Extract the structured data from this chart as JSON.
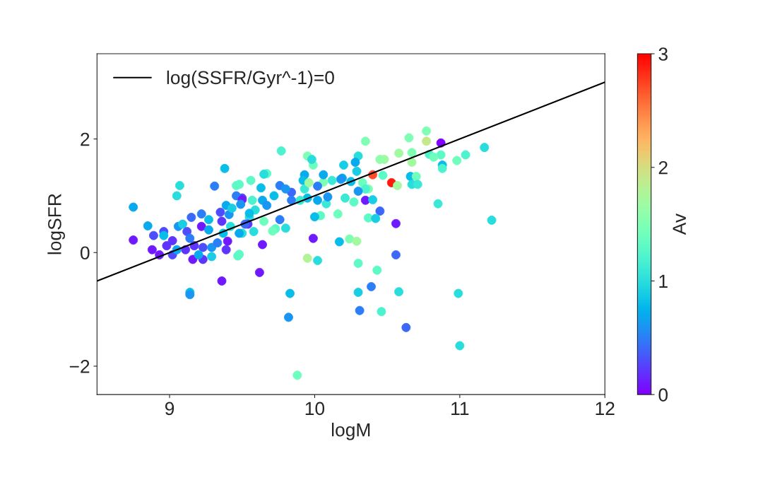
{
  "chart_data": {
    "type": "scatter",
    "xlabel": "logM",
    "ylabel": "logSFR",
    "clabel": "Av",
    "xlim": [
      8.5,
      12
    ],
    "xticks": [
      9,
      10,
      11,
      12
    ],
    "ylim": [
      -2.5,
      3.5
    ],
    "yticks": [
      {
        "value": -2,
        "label": "−2"
      },
      0,
      2
    ],
    "clim": [
      0,
      3
    ],
    "cticks": [
      0,
      1,
      2,
      3
    ],
    "grid": false,
    "legend": "top left",
    "series": [
      {
        "marker": "circle",
        "x": [
          8.75,
          8.75,
          8.85,
          9.07,
          9.05,
          9.38,
          9.31,
          9.46,
          9.36,
          9.14,
          9.14,
          9.62,
          9.47,
          9.95,
          10.02,
          9.83,
          9.82,
          9.88,
          10.3,
          10.43,
          10.56,
          10.39,
          10.3,
          10.58,
          10.99,
          10.31,
          10.46,
          10.63,
          11.0,
          11.22,
          10.77,
          10.77,
          10.65,
          10.87,
          11.17,
          10.58,
          10.67,
          10.48,
          10.67,
          10.79,
          10.87,
          10.82,
          10.98,
          11.04,
          10.88,
          10.88,
          10.47,
          10.53,
          10.57,
          10.66,
          10.7,
          10.67,
          10.71,
          10.85,
          10.56,
          10.45,
          10.35,
          10.45,
          9.77,
          9.95,
          9.99,
          9.98,
          10.3,
          10.28,
          10.2,
          10.29,
          10.4,
          10.19,
          10.25,
          10.33,
          10.37,
          10.35,
          10.3,
          10.35,
          10.4,
          10.37,
          10.42,
          10.21,
          10.27,
          10.16,
          10.04,
          10.0,
          10.08,
          10.06,
          10.18,
          10.12,
          10.06,
          9.93,
          9.92,
          9.93,
          10.02,
          9.96,
          10.09,
          10.02,
          9.95,
          9.9,
          9.84,
          9.76,
          9.8,
          9.63,
          9.56,
          9.67,
          9.65,
          9.48,
          9.72,
          9.84,
          9.64,
          9.57,
          9.5,
          9.59,
          9.67,
          9.76,
          9.8,
          9.73,
          9.71,
          9.64,
          9.65,
          9.55,
          9.58,
          9.54,
          9.5,
          9.99,
          10.17,
          10.24,
          10.29,
          9.48,
          8.88,
          8.89,
          8.96,
          8.96,
          8.98,
          9.02,
          8.93,
          9.02,
          9.06,
          9.09,
          9.12,
          9.15,
          9.22,
          9.14,
          9.11,
          9.17,
          9.16,
          9.23,
          9.22,
          9.27,
          9.27,
          9.23,
          9.29,
          9.29,
          9.33,
          9.35,
          9.36,
          9.37,
          9.39,
          9.4,
          9.42,
          9.41,
          9.39,
          9.43,
          9.46,
          9.5,
          9.49,
          9.48,
          9.52,
          9.55,
          9.05,
          9.2
        ],
        "values": [
          0.8,
          0.22,
          0.47,
          1.18,
          1.0,
          1.48,
          1.17,
          1.18,
          -0.5,
          -0.7,
          -0.74,
          -0.35,
          -0.06,
          -0.1,
          -0.14,
          -0.72,
          -1.14,
          -2.16,
          -0.19,
          -0.31,
          -0.04,
          -0.6,
          -0.7,
          -0.69,
          -0.72,
          -1.02,
          -1.04,
          -1.32,
          -1.64,
          0.57,
          2.14,
          1.96,
          2.02,
          1.93,
          1.85,
          1.75,
          1.76,
          1.64,
          1.59,
          1.73,
          1.72,
          1.68,
          1.62,
          1.72,
          1.54,
          1.48,
          1.36,
          1.23,
          1.18,
          1.34,
          1.34,
          1.2,
          1.2,
          0.86,
          0.51,
          0.73,
          1.96,
          1.64,
          1.79,
          1.7,
          1.54,
          1.64,
          1.7,
          1.59,
          1.54,
          1.43,
          1.37,
          1.31,
          1.25,
          1.23,
          1.12,
          1.12,
          1.08,
          0.92,
          0.93,
          0.61,
          0.6,
          0.96,
          0.89,
          0.68,
          0.65,
          0.63,
          0.86,
          1.24,
          1.29,
          1.27,
          1.37,
          1.37,
          1.27,
          1.12,
          1.17,
          1.23,
          0.98,
          0.92,
          0.96,
          0.92,
          1.06,
          1.18,
          1.12,
          1.14,
          1.27,
          1.39,
          1.38,
          1.2,
          1.0,
          0.92,
          0.92,
          0.92,
          0.96,
          0.75,
          0.83,
          0.58,
          0.43,
          0.42,
          0.38,
          0.14,
          0.55,
          0.62,
          0.37,
          0.5,
          0.34,
          0.25,
          0.19,
          0.24,
          0.2,
          -0.03,
          0.05,
          0.3,
          0.37,
          0.3,
          0.12,
          0.21,
          -0.04,
          -0.04,
          0.46,
          0.5,
          0.37,
          0.62,
          0.68,
          0.25,
          0.05,
          0.12,
          -0.12,
          -0.12,
          0.46,
          0.58,
          0.4,
          0.09,
          -0.07,
          0.09,
          0.17,
          0.71,
          0.55,
          0.34,
          0.05,
          0.2,
          0.46,
          0.67,
          0.83,
          0.78,
          1.0,
          0.93,
          0.85,
          0.34,
          0.5,
          0.69,
          0.05,
          -0.04
        ],
        "cvalues": [
          0.7,
          0.1,
          0.7,
          1.0,
          1.0,
          0.8,
          0.5,
          1.3,
          0.1,
          0.8,
          0.6,
          0.1,
          1.3,
          1.8,
          1.0,
          0.8,
          0.6,
          1.4,
          1.3,
          1.3,
          0.4,
          0.5,
          0.9,
          1.0,
          1.0,
          0.5,
          1.2,
          0.4,
          1.0,
          1.0,
          1.5,
          1.9,
          1.5,
          0.0,
          1.0,
          1.7,
          1.5,
          1.7,
          1.7,
          1.2,
          1.3,
          1.4,
          1.4,
          1.2,
          0.8,
          1.2,
          1.3,
          2.9,
          1.7,
          0.8,
          1.4,
          1.0,
          1.1,
          1.1,
          0.1,
          0.4,
          1.5,
          1.6,
          1.2,
          1.5,
          1.4,
          1.0,
          1.0,
          0.7,
          0.9,
          0.9,
          2.7,
          0.7,
          0.8,
          1.4,
          1.5,
          1.2,
          0.6,
          0.1,
          0.9,
          1.3,
          0.9,
          1.1,
          1.3,
          1.4,
          1.3,
          0.8,
          1.1,
          1.5,
          0.6,
          1.1,
          0.7,
          0.7,
          0.8,
          1.1,
          0.5,
          1.7,
          0.6,
          0.7,
          0.8,
          1.1,
          0.4,
          0.5,
          0.6,
          0.8,
          1.3,
          1.3,
          1.0,
          1.3,
          0.8,
          0.5,
          0.7,
          1.2,
          0.3,
          1.0,
          0.6,
          0.5,
          1.0,
          1.3,
          1.4,
          0.1,
          1.4,
          1.0,
          1.0,
          0.2,
          1.0,
          0.1,
          0.8,
          1.5,
          1.7,
          1.3,
          0.1,
          0.3,
          0.3,
          0.8,
          0.2,
          0.2,
          0.1,
          0.3,
          0.6,
          0.9,
          0.3,
          0.4,
          0.5,
          0.5,
          0.2,
          0.2,
          0.1,
          0.2,
          0.1,
          0.8,
          0.7,
          0.3,
          0.9,
          0.6,
          0.5,
          0.3,
          0.2,
          0.8,
          0.2,
          0.1,
          1.0,
          0.6,
          0.7,
          0.9,
          0.5,
          0.1,
          0.6,
          0.7,
          0.4,
          0.8,
          0.7,
          0.7
        ],
        "colors": [
          "#08aaee",
          "#6e1bff",
          "#08aaee",
          "#2adcdc",
          "#2adcdc",
          "#08bde8",
          "#2a7ff6",
          "#5df9c6",
          "#6e1bff",
          "#08bde8",
          "#1995f2",
          "#6e1bff",
          "#5df9c6",
          "#b2f295",
          "#2adcdc",
          "#08bde8",
          "#1995f2",
          "#6efdbd",
          "#5df9c6",
          "#5df9c6",
          "#3b67f9",
          "#2a7ff6",
          "#19cee3",
          "#2adcdc",
          "#2adcdc",
          "#2a7ff6",
          "#4cf2ce",
          "#3b67f9",
          "#2adcdc",
          "#2adcdc",
          "#80ffb4",
          "#c3e88a",
          "#80ffb4",
          "#8000ff",
          "#2adcdc",
          "#a1f9a0",
          "#80ffb4",
          "#a1f9a0",
          "#a1f9a0",
          "#4cf2ce",
          "#5df9c6",
          "#6efdbd",
          "#6efdbd",
          "#4cf2ce",
          "#08bde8",
          "#4cf2ce",
          "#5df9c6",
          "#ff1b0d",
          "#a1f9a0",
          "#08bde8",
          "#6efdbd",
          "#2adcdc",
          "#3be8d5",
          "#3be8d5",
          "#6e1bff",
          "#3b67f9",
          "#80ffb4",
          "#90fdaa",
          "#4cf2ce",
          "#80ffb4",
          "#6efdbd",
          "#2adcdc",
          "#2adcdc",
          "#08aaee",
          "#19cee3",
          "#19cee3",
          "#ff4f28",
          "#08aaee",
          "#08bde8",
          "#6efdbd",
          "#80ffb4",
          "#4cf2ce",
          "#1995f2",
          "#6e1bff",
          "#19cee3",
          "#5df9c6",
          "#19cee3",
          "#3be8d5",
          "#5df9c6",
          "#6efdbd",
          "#5df9c6",
          "#08bde8",
          "#3be8d5",
          "#80ffb4",
          "#1995f2",
          "#3be8d5",
          "#08aaee",
          "#08aaee",
          "#08bde8",
          "#3be8d5",
          "#2a7ff6",
          "#a1f9a0",
          "#1995f2",
          "#08aaee",
          "#08bde8",
          "#3be8d5",
          "#3b67f9",
          "#2a7ff6",
          "#1995f2",
          "#08bde8",
          "#5df9c6",
          "#5df9c6",
          "#2adcdc",
          "#5df9c6",
          "#08bde8",
          "#2a7ff6",
          "#08aaee",
          "#4cf2ce",
          "#4c4ffb",
          "#2adcdc",
          "#1995f2",
          "#2a7ff6",
          "#2adcdc",
          "#5df9c6",
          "#6efdbd",
          "#6e1bff",
          "#6efdbd",
          "#2adcdc",
          "#2adcdc",
          "#5d35fd",
          "#2adcdc",
          "#6e1bff",
          "#08bde8",
          "#80ffb4",
          "#a1f9a0",
          "#5df9c6",
          "#6e1bff",
          "#4c4ffb",
          "#4c4ffb",
          "#08bde8",
          "#5d35fd",
          "#5d35fd",
          "#6e1bff",
          "#4c4ffb",
          "#1995f2",
          "#19cee3",
          "#4c4ffb",
          "#3b67f9",
          "#2a7ff6",
          "#2a7ff6",
          "#5d35fd",
          "#5d35fd",
          "#6e1bff",
          "#5d35fd",
          "#6e1bff",
          "#08bde8",
          "#08aaee",
          "#4c4ffb",
          "#19cee3",
          "#1995f2",
          "#2a7ff6",
          "#4c4ffb",
          "#5d35fd",
          "#08bde8",
          "#5d35fd",
          "#6e1bff",
          "#2adcdc",
          "#1995f2",
          "#08aaee",
          "#19cee3",
          "#2a7ff6",
          "#6e1bff",
          "#1995f2",
          "#08aaee",
          "#3b67f9",
          "#08bde8",
          "#08aaee",
          "#08aaee"
        ]
      },
      {
        "type": "line",
        "name": "log(SSFR/Gyr^-1)=0",
        "color": "#000000",
        "x": [
          8.5,
          12
        ],
        "values": [
          -0.5,
          3
        ]
      }
    ]
  }
}
